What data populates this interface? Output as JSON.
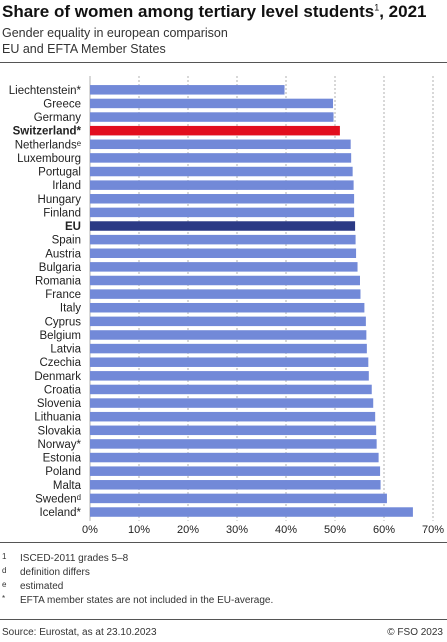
{
  "header": {
    "title": "Share of women among tertiary level students",
    "title_sup": "1",
    "title_year": ", 2021",
    "subtitle1": "Gender equality in european comparison",
    "subtitle2": "EU and EFTA Member States"
  },
  "chart_data": {
    "type": "bar",
    "orientation": "horizontal",
    "categories": [
      "Liechtenstein*",
      "Greece",
      "Germany",
      "Switzerland*",
      "Netherlandsᵉ",
      "Luxembourg",
      "Portugal",
      "Irland",
      "Hungary",
      "Finland",
      "EU",
      "Spain",
      "Austria",
      "Bulgaria",
      "Romania",
      "France",
      "Italy",
      "Cyprus",
      "Belgium",
      "Latvia",
      "Czechia",
      "Denmark",
      "Croatia",
      "Slovenia",
      "Lithuania",
      "Slovakia",
      "Norway*",
      "Estonia",
      "Poland",
      "Malta",
      "Swedenᵈ",
      "Iceland*"
    ],
    "values": [
      39.7,
      49.6,
      49.7,
      51.0,
      53.2,
      53.3,
      53.6,
      53.8,
      53.9,
      53.9,
      54.1,
      54.2,
      54.3,
      54.6,
      55.1,
      55.2,
      56.0,
      56.3,
      56.4,
      56.5,
      56.8,
      56.9,
      57.5,
      57.8,
      58.2,
      58.4,
      58.5,
      58.9,
      59.2,
      59.3,
      60.6,
      65.9
    ],
    "bold_categories": [
      "Switzerland*",
      "EU"
    ],
    "highlight": {
      "Switzerland*": "#e20e1e",
      "EU": "#2b3a85"
    },
    "default_color": "#7289d8",
    "xlim": [
      0,
      70
    ],
    "xticks": [
      0,
      10,
      20,
      30,
      40,
      50,
      60,
      70
    ],
    "xtick_labels": [
      "0%",
      "10%",
      "20%",
      "30%",
      "40%",
      "50%",
      "60%",
      "70%"
    ],
    "grid": true,
    "gridline_color": "#b0b0b0"
  },
  "footnotes": [
    {
      "mark": "1",
      "text": "ISCED-2011 grades 5–8"
    },
    {
      "mark": "d",
      "text": "definition differs"
    },
    {
      "mark": "e",
      "text": "estimated"
    },
    {
      "mark": "*",
      "text": "EFTA member states are not included in the EU-average."
    }
  ],
  "footer": {
    "source": "Source: Eurostat, as at 23.10.2023",
    "copyright": "© FSO 2023"
  }
}
